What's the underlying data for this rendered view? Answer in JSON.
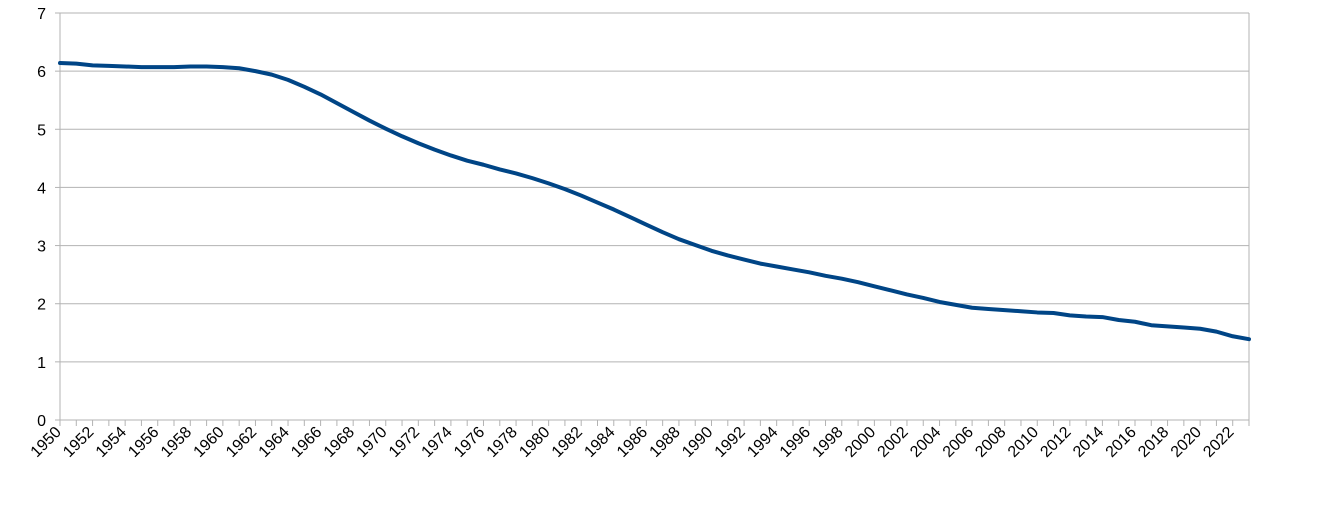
{
  "chart_data": {
    "type": "line",
    "title": "",
    "xlabel": "",
    "ylabel": "",
    "ylim": [
      0,
      7
    ],
    "yticks": [
      "0",
      "1",
      "2",
      "3",
      "4",
      "5",
      "6",
      "7"
    ],
    "xlim": [
      1950,
      2023
    ],
    "xtick_labels": [
      "1950",
      "1952",
      "1954",
      "1956",
      "1958",
      "1960",
      "1962",
      "1964",
      "1966",
      "1968",
      "1970",
      "1972",
      "1974",
      "1976",
      "1978",
      "1980",
      "1982",
      "1984",
      "1986",
      "1988",
      "1990",
      "1992",
      "1994",
      "1996",
      "1998",
      "2000",
      "2002",
      "2004",
      "2006",
      "2008",
      "2010",
      "2012",
      "2014",
      "2016",
      "2018",
      "2020",
      "2022"
    ],
    "grid": true,
    "legend": "none",
    "series": [
      {
        "color": "#004586",
        "x": [
          1950,
          1951,
          1952,
          1953,
          1954,
          1955,
          1956,
          1957,
          1958,
          1959,
          1960,
          1961,
          1962,
          1963,
          1964,
          1965,
          1966,
          1967,
          1968,
          1969,
          1970,
          1971,
          1972,
          1973,
          1974,
          1975,
          1976,
          1977,
          1978,
          1979,
          1980,
          1981,
          1982,
          1983,
          1984,
          1985,
          1986,
          1987,
          1988,
          1989,
          1990,
          1991,
          1992,
          1993,
          1994,
          1995,
          1996,
          1997,
          1998,
          1999,
          2000,
          2001,
          2002,
          2003,
          2004,
          2005,
          2006,
          2007,
          2008,
          2009,
          2010,
          2011,
          2012,
          2013,
          2014,
          2015,
          2016,
          2017,
          2018,
          2019,
          2020,
          2021,
          2022,
          2023
        ],
        "values": [
          6.14,
          6.13,
          6.1,
          6.09,
          6.08,
          6.07,
          6.07,
          6.07,
          6.08,
          6.08,
          6.07,
          6.05,
          6.0,
          5.94,
          5.85,
          5.73,
          5.6,
          5.45,
          5.3,
          5.15,
          5.01,
          4.88,
          4.76,
          4.65,
          4.55,
          4.46,
          4.39,
          4.31,
          4.24,
          4.16,
          4.07,
          3.97,
          3.86,
          3.74,
          3.62,
          3.49,
          3.36,
          3.23,
          3.11,
          3.01,
          2.91,
          2.83,
          2.76,
          2.69,
          2.64,
          2.59,
          2.54,
          2.48,
          2.43,
          2.37,
          2.3,
          2.23,
          2.16,
          2.1,
          2.03,
          1.98,
          1.93,
          1.91,
          1.89,
          1.87,
          1.85,
          1.84,
          1.8,
          1.78,
          1.77,
          1.72,
          1.69,
          1.63,
          1.61,
          1.59,
          1.57,
          1.52,
          1.44,
          1.39
        ]
      }
    ]
  }
}
